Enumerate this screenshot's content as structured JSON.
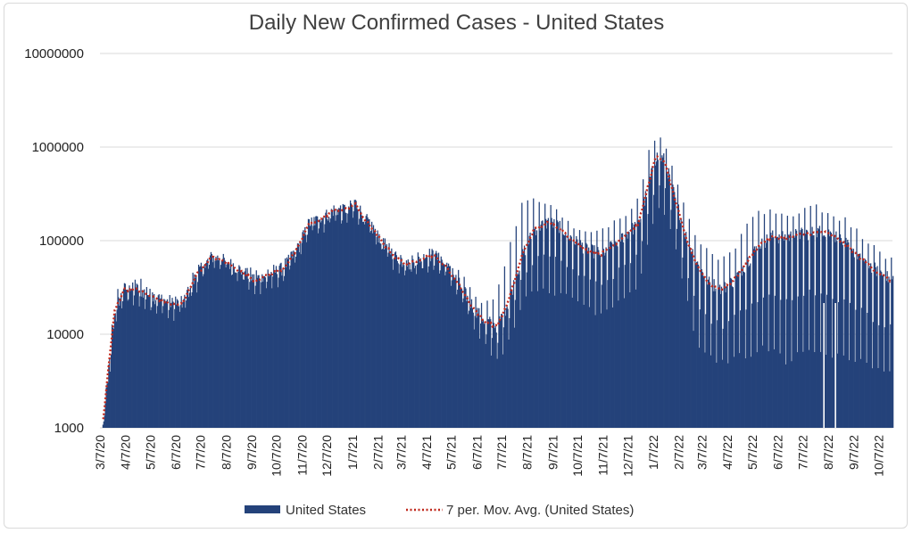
{
  "chart_data": {
    "type": "bar",
    "title": "Daily New Confirmed Cases - United States",
    "y_scale": "log",
    "ylim": [
      1000,
      10000000
    ],
    "y_ticks": [
      1000,
      10000,
      100000,
      1000000,
      10000000
    ],
    "y_tick_labels": [
      "1000",
      "10000",
      "100000",
      "1000000",
      "10000000"
    ],
    "grid": "horizontal",
    "x_tick_labels": [
      "3/7/20",
      "4/7/20",
      "5/7/20",
      "6/7/20",
      "7/7/20",
      "8/7/20",
      "9/7/20",
      "10/7/20",
      "11/7/20",
      "12/7/20",
      "1/7/21",
      "2/7/21",
      "3/7/21",
      "4/7/21",
      "5/7/21",
      "6/7/21",
      "7/7/21",
      "8/7/21",
      "9/7/21",
      "10/7/21",
      "11/7/21",
      "12/7/21",
      "1/7/22",
      "2/7/22",
      "3/7/22",
      "4/7/22",
      "5/7/22",
      "6/7/22",
      "7/7/22",
      "8/7/22",
      "9/7/22",
      "10/7/22"
    ],
    "legend_position": "bottom",
    "colors": {
      "bars": "#24427a",
      "moving_avg": "#c0281c",
      "grid": "#d9d9d9"
    },
    "series": [
      {
        "name": "United States",
        "kind": "bar",
        "note": "daily values; weekly low/high pattern with reporting gaps",
        "weekly_low_high": true
      },
      {
        "name": "7 per. Mov. Avg. (United States)",
        "kind": "line-dotted"
      }
    ],
    "anchors": {
      "dates": [
        "3/10/20",
        "3/18/20",
        "3/25/20",
        "4/5/20",
        "4/20/20",
        "5/10/20",
        "6/1/20",
        "6/15/20",
        "7/1/20",
        "7/20/20",
        "8/1/20",
        "8/20/20",
        "9/10/20",
        "9/25/20",
        "10/15/20",
        "11/1/20",
        "11/15/20",
        "12/1/20",
        "12/15/20",
        "1/1/21",
        "1/10/21",
        "1/20/21",
        "2/1/21",
        "2/15/21",
        "3/1/21",
        "3/15/21",
        "4/1/21",
        "4/15/21",
        "5/1/21",
        "5/15/21",
        "6/1/21",
        "6/15/21",
        "7/1/21",
        "7/15/21",
        "8/1/21",
        "8/15/21",
        "9/1/21",
        "9/15/21",
        "10/1/21",
        "10/20/21",
        "11/5/21",
        "11/20/21",
        "12/1/21",
        "12/20/21",
        "1/1/22",
        "1/10/22",
        "1/20/22",
        "2/1/22",
        "2/15/22",
        "3/1/22",
        "3/15/22",
        "4/1/22",
        "4/15/22",
        "5/1/22",
        "5/15/22",
        "6/1/22",
        "6/15/22",
        "7/1/22",
        "7/20/22",
        "8/1/22",
        "8/15/22",
        "9/1/22",
        "9/15/22",
        "10/1/22",
        "10/20/22"
      ],
      "moving_avg": [
        1000,
        5000,
        18000,
        30000,
        30000,
        25000,
        21000,
        21000,
        42000,
        66000,
        62000,
        50000,
        38000,
        42000,
        50000,
        80000,
        150000,
        170000,
        210000,
        215000,
        250000,
        180000,
        130000,
        90000,
        65000,
        55000,
        65000,
        70000,
        52000,
        35000,
        20000,
        14000,
        12000,
        22000,
        70000,
        130000,
        155000,
        140000,
        100000,
        78000,
        72000,
        90000,
        110000,
        150000,
        400000,
        780000,
        720000,
        300000,
        110000,
        55000,
        35000,
        30000,
        38000,
        60000,
        90000,
        110000,
        105000,
        115000,
        120000,
        125000,
        110000,
        85000,
        65000,
        50000,
        38000
      ],
      "daily_high": [
        1000,
        8000,
        30000,
        34000,
        45000,
        31000,
        26000,
        28000,
        55000,
        76000,
        70000,
        58000,
        50000,
        52000,
        62000,
        100000,
        180000,
        200000,
        240000,
        250000,
        300000,
        210000,
        160000,
        110000,
        78000,
        70000,
        80000,
        85000,
        68000,
        50000,
        32000,
        22000,
        30000,
        90000,
        290000,
        300000,
        280000,
        210000,
        150000,
        120000,
        140000,
        165000,
        180000,
        300000,
        1000000,
        1480000,
        1200000,
        520000,
        230000,
        105000,
        80000,
        70000,
        90000,
        180000,
        220000,
        230000,
        200000,
        220000,
        260000,
        230000,
        200000,
        170000,
        120000,
        90000,
        70000
      ],
      "daily_low": [
        1000,
        3000,
        14000,
        22000,
        20000,
        18000,
        15000,
        17000,
        30000,
        55000,
        52000,
        40000,
        28000,
        30000,
        38000,
        62000,
        120000,
        130000,
        160000,
        150000,
        180000,
        140000,
        100000,
        65000,
        50000,
        45000,
        48000,
        52000,
        40000,
        25000,
        13000,
        8000,
        5000,
        9000,
        22000,
        30000,
        30000,
        25000,
        25000,
        20000,
        15000,
        20000,
        25000,
        35000,
        100000,
        220000,
        200000,
        90000,
        25000,
        8000,
        6000,
        5000,
        6000,
        6000,
        7000,
        7000,
        5000,
        6000,
        7000,
        6000,
        6000,
        5000,
        5000,
        4000,
        4000
      ]
    }
  },
  "legend": {
    "bars_label": "United States",
    "line_label": "7 per. Mov. Avg. (United States)"
  }
}
